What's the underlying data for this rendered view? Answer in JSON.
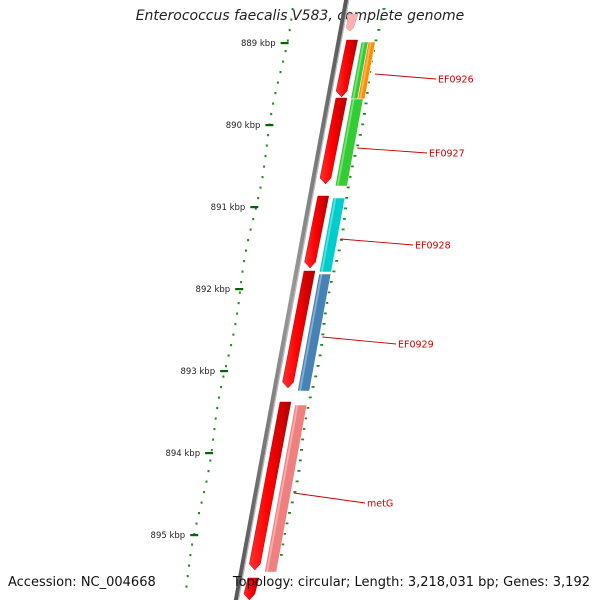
{
  "title": "Enterococcus faecalis V583, complete genome",
  "accession": "Accession: NC_004668",
  "topology": "Topology: circular; Length: 3,218,031 bp; Genes: 3,192",
  "ticks": [
    "889 kbp",
    "890 kbp",
    "891 kbp",
    "892 kbp",
    "893 kbp",
    "894 kbp",
    "895 kbp"
  ],
  "genes": [
    {
      "name": "EF0926",
      "color": "#ff8c00"
    },
    {
      "name": "EF0927",
      "color": "#33cc33"
    },
    {
      "name": "EF0928",
      "color": "#00cccc"
    },
    {
      "name": "EF0929",
      "color": "#4682b4"
    },
    {
      "name": "metG",
      "color": "#f08080"
    }
  ],
  "colors": {
    "backbone": "#777777",
    "cds": "#ee0000",
    "label": "#cc0000",
    "tick": "#006600",
    "gc": "#228b22"
  }
}
